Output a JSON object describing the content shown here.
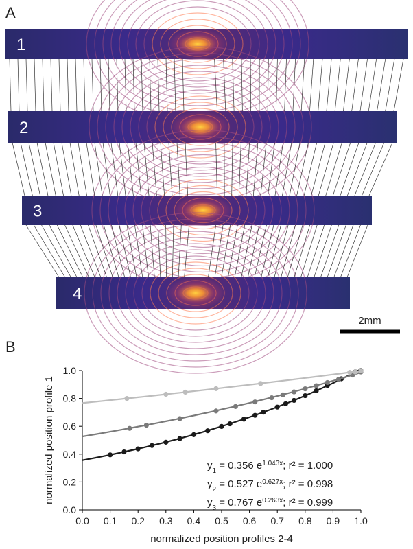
{
  "panel_a": {
    "label": "A",
    "profiles": [
      "1",
      "2",
      "3",
      "4"
    ],
    "scale_bar": "2mm"
  },
  "chart_data": {
    "type": "scatter",
    "panel_label": "B",
    "x_label": "normalized position profiles 2-4",
    "y_label": "normalized position profile 1",
    "xlim": [
      0,
      1
    ],
    "ylim": [
      0,
      1
    ],
    "xticks": [
      {
        "value": 0,
        "label": "0.0"
      },
      0.1,
      0.2,
      0.3,
      0.4,
      0.5,
      0.6,
      0.7,
      0.8,
      0.9,
      {
        "value": 1,
        "label": "1.0"
      }
    ],
    "yticks": [
      {
        "value": 0,
        "label": "0.0"
      },
      0.2,
      0.4,
      0.6,
      0.8,
      {
        "value": 1,
        "label": "1.0"
      }
    ],
    "series": [
      {
        "color": "#1a1a1a",
        "x": [
          0.1,
          0.15,
          0.2,
          0.25,
          0.3,
          0.35,
          0.4,
          0.45,
          0.5,
          0.53,
          0.58,
          0.62,
          0.65,
          0.7,
          0.73,
          0.76,
          0.8,
          0.84,
          0.88,
          0.93,
          0.98,
          1.0
        ],
        "values": [
          0.395,
          0.416,
          0.438,
          0.462,
          0.486,
          0.512,
          0.54,
          0.568,
          0.599,
          0.618,
          0.651,
          0.679,
          0.701,
          0.738,
          0.762,
          0.786,
          0.82,
          0.855,
          0.893,
          0.941,
          0.991,
          1.0
        ],
        "fit": {
          "label": "y",
          "subscript": "1",
          "equals": " = ",
          "a": 0.356,
          "base": " e",
          "b": 1.043,
          "var": "x",
          "sep": "; r² = ",
          "r2": {
            "value": 1,
            "label": "1.000"
          }
        }
      },
      {
        "color": "#7a7a7a",
        "x": [
          0.17,
          0.23,
          0.35,
          0.48,
          0.55,
          0.62,
          0.68,
          0.72,
          0.76,
          0.8,
          0.84,
          0.88,
          0.92,
          0.97,
          1.0
        ],
        "values": [
          0.585,
          0.608,
          0.655,
          0.71,
          0.742,
          0.775,
          0.805,
          0.826,
          0.847,
          0.869,
          0.891,
          0.914,
          0.937,
          0.968,
          0.99
        ],
        "fit": {
          "label": "y",
          "subscript": "2",
          "equals": " = ",
          "a": 0.527,
          "base": " e",
          "b": 0.627,
          "var": "x",
          "sep": "; r² = ",
          "r2": 0.998
        }
      },
      {
        "color": "#bdbdbd",
        "x": [
          0.16,
          0.3,
          0.37,
          0.48,
          0.64,
          0.96,
          0.98,
          1.0
        ],
        "values": [
          0.8,
          0.83,
          0.845,
          0.87,
          0.907,
          0.987,
          0.99,
          0.998
        ],
        "fit": {
          "label": "y",
          "subscript": "3",
          "equals": " = ",
          "a": 0.767,
          "base": " e",
          "b": 0.263,
          "var": "x",
          "sep": "; r² = ",
          "r2": 0.999
        }
      }
    ]
  }
}
